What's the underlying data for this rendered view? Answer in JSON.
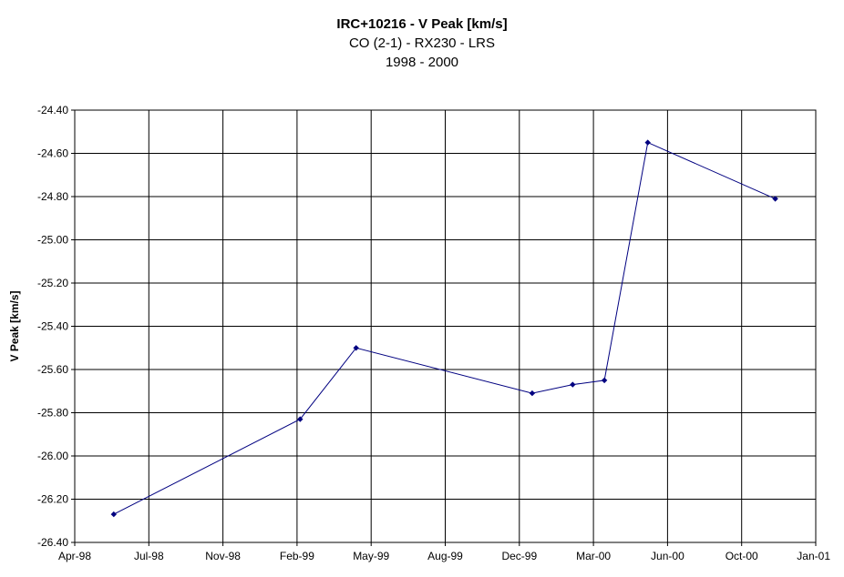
{
  "chart_data": {
    "type": "line",
    "title": "IRC+10216 - V Peak [km/s]",
    "subtitle": [
      "CO (2-1) - RX230 - LRS",
      "1998 - 2000"
    ],
    "xlabel": "",
    "ylabel": "V Peak [km/s]",
    "x_tick_labels": [
      "Apr-98",
      "Jul-98",
      "Nov-98",
      "Feb-99",
      "May-99",
      "Aug-99",
      "Dec-99",
      "Mar-00",
      "Jun-00",
      "Oct-00",
      "Jan-01"
    ],
    "y_tick_labels": [
      "-24.40",
      "-24.60",
      "-24.80",
      "-25.00",
      "-25.20",
      "-25.40",
      "-25.60",
      "-25.80",
      "-26.00",
      "-26.20",
      "-26.40"
    ],
    "ylim": [
      -26.4,
      -24.4
    ],
    "xlim": [
      "1998-04-01",
      "2001-01-01"
    ],
    "grid": true,
    "series": [
      {
        "color": "#000080",
        "x": [
          "1998-05-24",
          "1999-02-01",
          "1999-04-18",
          "1999-12-13",
          "2000-02-06",
          "2000-03-20",
          "2000-05-18",
          "2000-11-07"
        ],
        "y": [
          -26.27,
          -25.83,
          -25.5,
          -25.71,
          -25.67,
          -25.65,
          -24.55,
          -24.81
        ]
      }
    ]
  }
}
